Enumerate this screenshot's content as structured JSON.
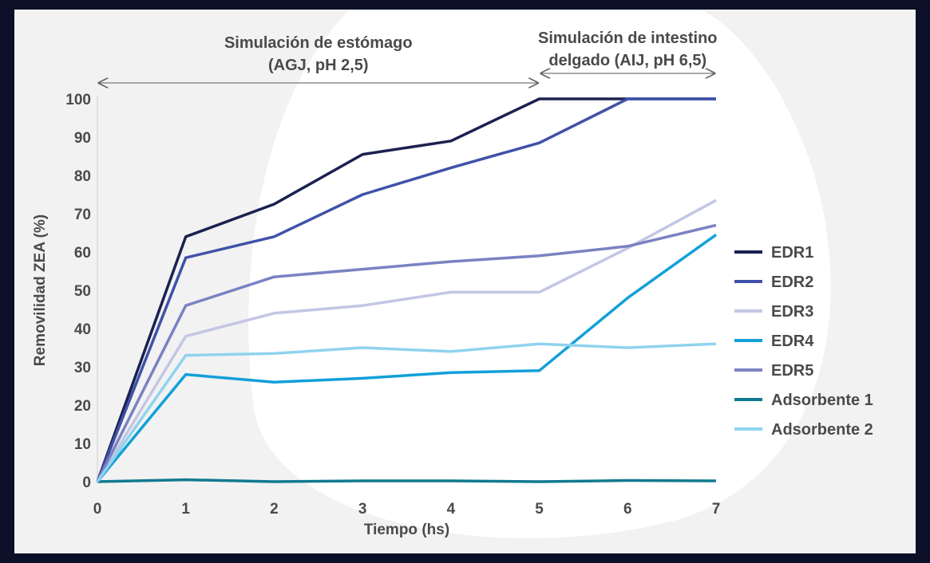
{
  "chart_data": {
    "type": "line",
    "title": "",
    "annotations": [
      {
        "lines": [
          "Simulación de estómago",
          "(AGJ, pH 2,5)"
        ],
        "x_range": [
          0,
          5
        ]
      },
      {
        "lines": [
          "Simulación de intestino",
          "delgado (AIJ, pH 6,5)"
        ],
        "x_range": [
          5,
          7
        ]
      }
    ],
    "xlabel": "Tiempo (hs)",
    "ylabel": "Removilidad ZEA (%)",
    "x": [
      0,
      1,
      2,
      3,
      4,
      5,
      6,
      7
    ],
    "xticks": [
      "0",
      "1",
      "2",
      "3",
      "4",
      "5",
      "6",
      "7"
    ],
    "yticks": [
      "0",
      "10",
      "20",
      "30",
      "40",
      "50",
      "60",
      "70",
      "80",
      "90",
      "100"
    ],
    "xlim": [
      0,
      7
    ],
    "ylim": [
      0,
      100
    ],
    "grid": false,
    "legend_position": "right",
    "series": [
      {
        "name": "EDR1",
        "color": "#1b2150",
        "values": [
          0,
          64,
          72.5,
          85.5,
          89,
          100,
          100,
          100
        ]
      },
      {
        "name": "EDR2",
        "color": "#3f52a9",
        "values": [
          0,
          58.5,
          64,
          75,
          82,
          88.5,
          100,
          100
        ]
      },
      {
        "name": "EDR3",
        "color": "#c3c6e4",
        "values": [
          0,
          38,
          44,
          46,
          49.5,
          49.5,
          61,
          73.5
        ]
      },
      {
        "name": "EDR4",
        "color": "#12a0d9",
        "values": [
          0,
          28,
          26,
          27,
          28.5,
          29,
          48,
          64.5
        ]
      },
      {
        "name": "EDR5",
        "color": "#7b82c2",
        "values": [
          0,
          46,
          53.5,
          55.5,
          57.5,
          59,
          61.5,
          67
        ]
      },
      {
        "name": "Adsorbente 1",
        "color": "#117a8f",
        "values": [
          0,
          0.5,
          0,
          0.2,
          0.2,
          0,
          0.3,
          0.2
        ]
      },
      {
        "name": "Adsorbente 2",
        "color": "#8fd3ee",
        "values": [
          0,
          33,
          33.5,
          35,
          34,
          36,
          35,
          36
        ]
      }
    ]
  }
}
